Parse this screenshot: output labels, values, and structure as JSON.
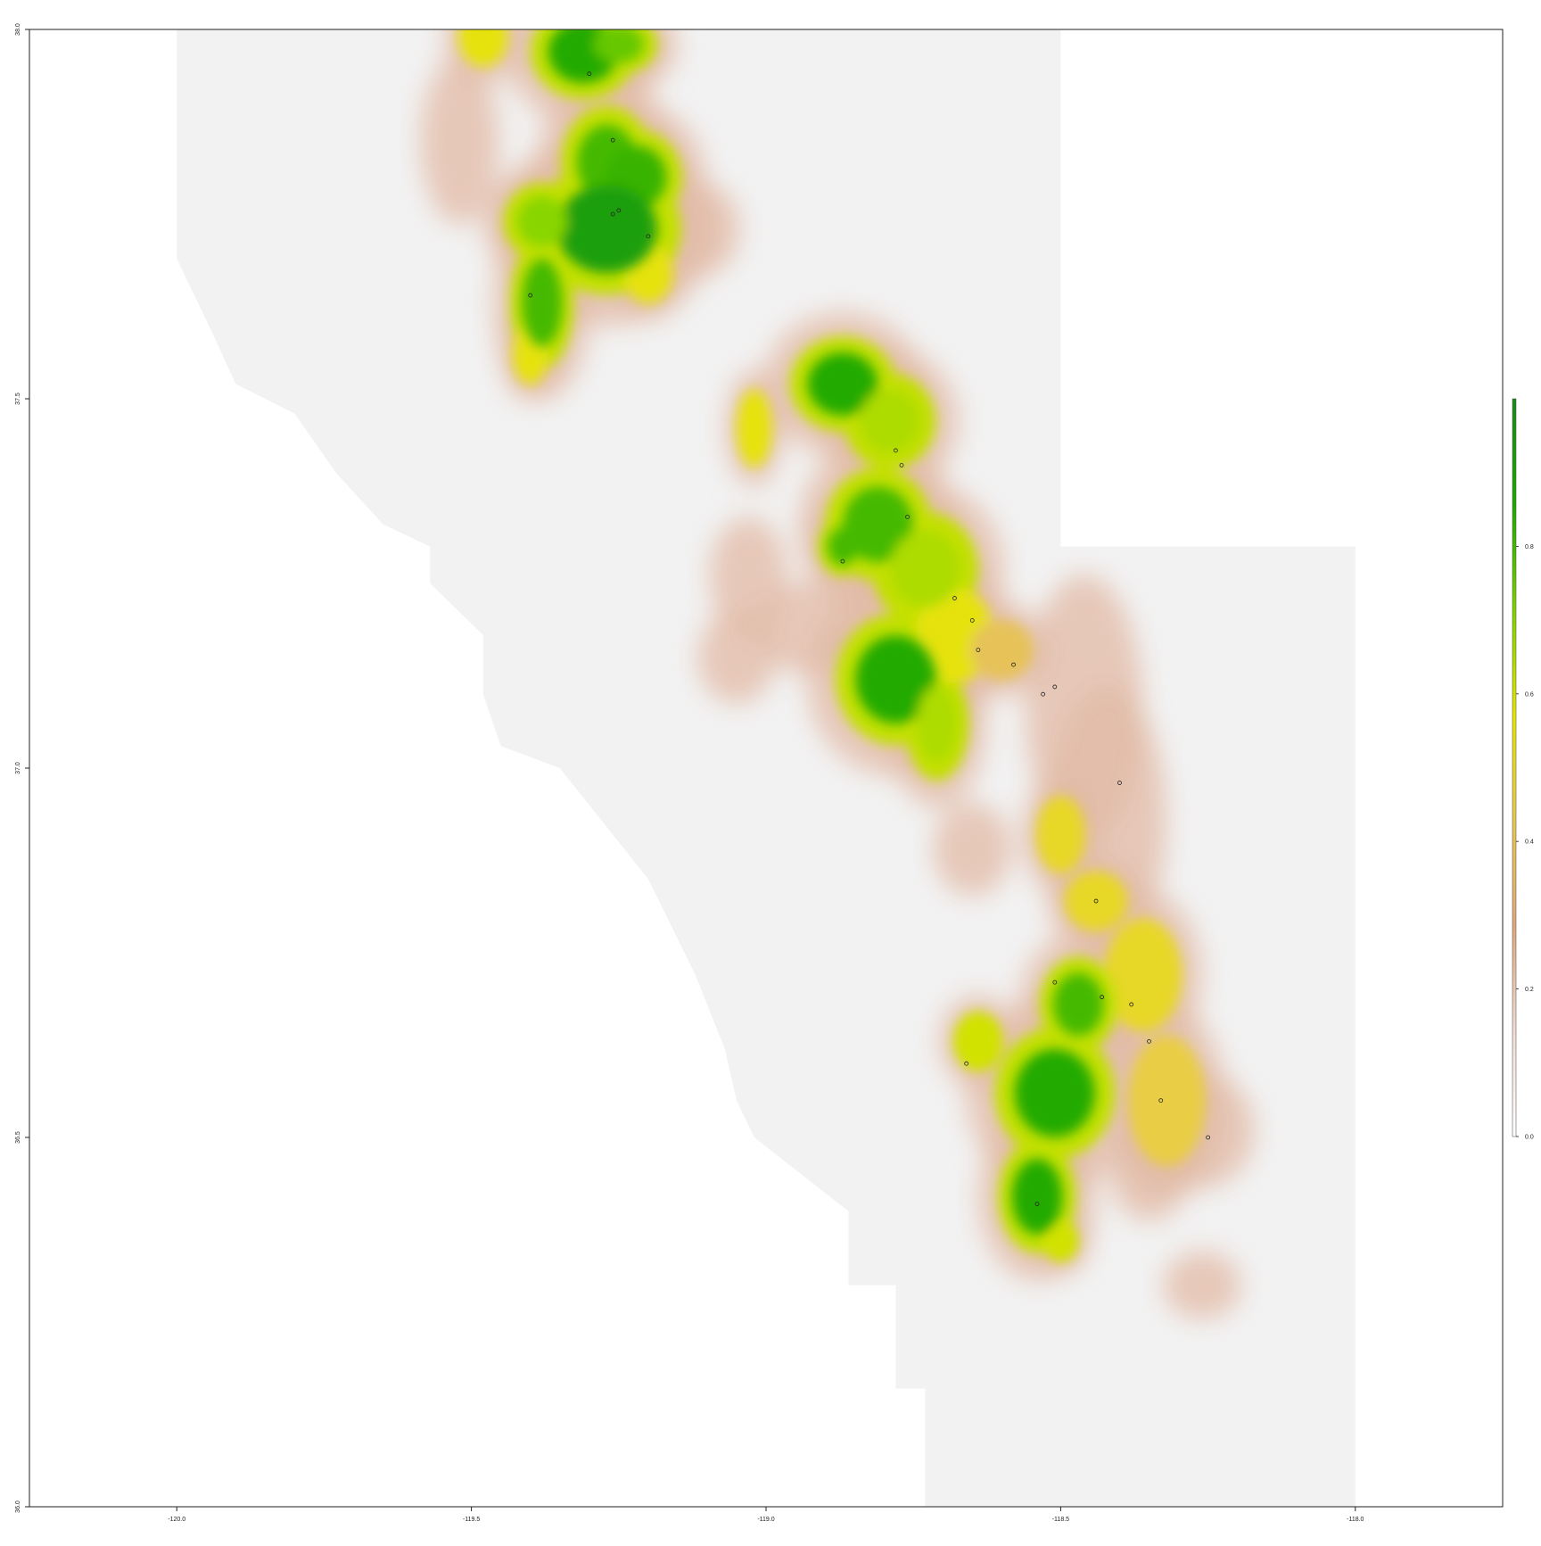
{
  "map": {
    "x_axis": {
      "range": [
        -120.25,
        -117.75
      ],
      "ticks": [
        {
          "value": -120.0,
          "label": "-120.0"
        },
        {
          "value": -119.5,
          "label": "-119.5"
        },
        {
          "value": -119.0,
          "label": "-119.0"
        },
        {
          "value": -118.5,
          "label": "-118.5"
        },
        {
          "value": -118.0,
          "label": "-118.0"
        }
      ]
    },
    "y_axis": {
      "range": [
        36.0,
        38.0
      ],
      "ticks": [
        {
          "value": 36.0,
          "label": "36.0"
        },
        {
          "value": 36.5,
          "label": "36.5"
        },
        {
          "value": 37.0,
          "label": "37.0"
        },
        {
          "value": 37.5,
          "label": "37.5"
        },
        {
          "value": 38.0,
          "label": "38.0"
        }
      ]
    },
    "legend": {
      "placement": "right",
      "range": [
        0.0,
        1.0
      ],
      "ticks": [
        {
          "value": 0.0,
          "label": "0.0"
        },
        {
          "value": 0.2,
          "label": "0.2"
        },
        {
          "value": 0.4,
          "label": "0.4"
        },
        {
          "value": 0.6,
          "label": "0.6"
        },
        {
          "value": 0.8,
          "label": "0.8"
        }
      ],
      "colors": [
        "#ffffff",
        "#f0ddd5",
        "#e0a87a",
        "#e8c850",
        "#e6e600",
        "#7ed300",
        "#1ea800",
        "#1a8a1a"
      ]
    },
    "colors": {
      "no_data": "#ffffff",
      "background_raster": "#f2f2f2",
      "low": "#e2b9a6",
      "mid": "#e6e600",
      "high": "#1ea800"
    }
  },
  "chart_data": {
    "type": "heatmap",
    "xlim": [
      -120.25,
      -117.75
    ],
    "ylim": [
      36.0,
      38.0
    ],
    "value_range": [
      0.0,
      1.0
    ],
    "grid": false,
    "legend_placement": "right",
    "occurrence_points": [
      {
        "x": -119.3,
        "y": 37.94
      },
      {
        "x": -119.26,
        "y": 37.85
      },
      {
        "x": -119.26,
        "y": 37.75
      },
      {
        "x": -119.25,
        "y": 37.755
      },
      {
        "x": -119.2,
        "y": 37.72
      },
      {
        "x": -119.4,
        "y": 37.64
      },
      {
        "x": -118.78,
        "y": 37.43
      },
      {
        "x": -118.77,
        "y": 37.41
      },
      {
        "x": -118.76,
        "y": 37.34
      },
      {
        "x": -118.87,
        "y": 37.28
      },
      {
        "x": -118.68,
        "y": 37.23
      },
      {
        "x": -118.65,
        "y": 37.2
      },
      {
        "x": -118.64,
        "y": 37.16
      },
      {
        "x": -118.58,
        "y": 37.14
      },
      {
        "x": -118.51,
        "y": 37.11
      },
      {
        "x": -118.53,
        "y": 37.1
      },
      {
        "x": -118.4,
        "y": 36.98
      },
      {
        "x": -118.44,
        "y": 36.82
      },
      {
        "x": -118.51,
        "y": 36.71
      },
      {
        "x": -118.43,
        "y": 36.69
      },
      {
        "x": -118.38,
        "y": 36.68
      },
      {
        "x": -118.35,
        "y": 36.63
      },
      {
        "x": -118.66,
        "y": 36.6
      },
      {
        "x": -118.33,
        "y": 36.55
      },
      {
        "x": -118.25,
        "y": 36.5
      },
      {
        "x": -118.54,
        "y": 36.41
      }
    ],
    "suitability_blobs": [
      {
        "x": -119.48,
        "y": 37.99,
        "rx": 0.03,
        "ry": 0.03,
        "v": 0.55
      },
      {
        "x": -119.31,
        "y": 37.97,
        "rx": 0.07,
        "ry": 0.05,
        "v": 0.85
      },
      {
        "x": -119.25,
        "y": 37.98,
        "rx": 0.05,
        "ry": 0.03,
        "v": 0.75
      },
      {
        "x": -119.52,
        "y": 37.85,
        "rx": 0.03,
        "ry": 0.06,
        "v": 0.35
      },
      {
        "x": -119.27,
        "y": 37.82,
        "rx": 0.06,
        "ry": 0.06,
        "v": 0.8
      },
      {
        "x": -119.22,
        "y": 37.8,
        "rx": 0.06,
        "ry": 0.05,
        "v": 0.82
      },
      {
        "x": -119.27,
        "y": 37.73,
        "rx": 0.1,
        "ry": 0.07,
        "v": 0.9
      },
      {
        "x": -119.38,
        "y": 37.74,
        "rx": 0.05,
        "ry": 0.04,
        "v": 0.7
      },
      {
        "x": -119.38,
        "y": 37.63,
        "rx": 0.04,
        "ry": 0.07,
        "v": 0.8
      },
      {
        "x": -119.2,
        "y": 37.67,
        "rx": 0.03,
        "ry": 0.03,
        "v": 0.55
      },
      {
        "x": -119.11,
        "y": 37.73,
        "rx": 0.03,
        "ry": 0.03,
        "v": 0.35
      },
      {
        "x": -119.4,
        "y": 37.56,
        "rx": 0.02,
        "ry": 0.03,
        "v": 0.55
      },
      {
        "x": -118.87,
        "y": 37.52,
        "rx": 0.07,
        "ry": 0.05,
        "v": 0.85
      },
      {
        "x": -118.79,
        "y": 37.47,
        "rx": 0.06,
        "ry": 0.05,
        "v": 0.65
      },
      {
        "x": -119.02,
        "y": 37.46,
        "rx": 0.02,
        "ry": 0.04,
        "v": 0.55
      },
      {
        "x": -118.81,
        "y": 37.33,
        "rx": 0.07,
        "ry": 0.06,
        "v": 0.8
      },
      {
        "x": -118.73,
        "y": 37.27,
        "rx": 0.07,
        "ry": 0.06,
        "v": 0.65
      },
      {
        "x": -118.87,
        "y": 37.3,
        "rx": 0.03,
        "ry": 0.03,
        "v": 0.8
      },
      {
        "x": -118.78,
        "y": 37.12,
        "rx": 0.08,
        "ry": 0.07,
        "v": 0.85
      },
      {
        "x": -118.71,
        "y": 37.06,
        "rx": 0.04,
        "ry": 0.06,
        "v": 0.65
      },
      {
        "x": -118.68,
        "y": 37.18,
        "rx": 0.05,
        "ry": 0.05,
        "v": 0.55
      },
      {
        "x": -118.6,
        "y": 37.16,
        "rx": 0.04,
        "ry": 0.03,
        "v": 0.4
      },
      {
        "x": -119.03,
        "y": 37.26,
        "rx": 0.03,
        "ry": 0.04,
        "v": 0.3
      },
      {
        "x": -119.05,
        "y": 37.15,
        "rx": 0.03,
        "ry": 0.03,
        "v": 0.3
      },
      {
        "x": -118.92,
        "y": 37.19,
        "rx": 0.05,
        "ry": 0.03,
        "v": 0.3
      },
      {
        "x": -118.46,
        "y": 37.08,
        "rx": 0.05,
        "ry": 0.1,
        "v": 0.35
      },
      {
        "x": -118.42,
        "y": 36.93,
        "rx": 0.05,
        "ry": 0.1,
        "v": 0.35
      },
      {
        "x": -118.5,
        "y": 36.91,
        "rx": 0.03,
        "ry": 0.04,
        "v": 0.5
      },
      {
        "x": -118.65,
        "y": 36.89,
        "rx": 0.03,
        "ry": 0.03,
        "v": 0.3
      },
      {
        "x": -118.44,
        "y": 36.82,
        "rx": 0.04,
        "ry": 0.03,
        "v": 0.5
      },
      {
        "x": -118.36,
        "y": 36.72,
        "rx": 0.05,
        "ry": 0.06,
        "v": 0.5
      },
      {
        "x": -118.47,
        "y": 36.68,
        "rx": 0.05,
        "ry": 0.05,
        "v": 0.8
      },
      {
        "x": -118.51,
        "y": 36.56,
        "rx": 0.08,
        "ry": 0.07,
        "v": 0.85
      },
      {
        "x": -118.64,
        "y": 36.63,
        "rx": 0.03,
        "ry": 0.03,
        "v": 0.6
      },
      {
        "x": -118.54,
        "y": 36.42,
        "rx": 0.05,
        "ry": 0.06,
        "v": 0.85
      },
      {
        "x": -118.32,
        "y": 36.55,
        "rx": 0.05,
        "ry": 0.07,
        "v": 0.45
      },
      {
        "x": -118.27,
        "y": 36.51,
        "rx": 0.05,
        "ry": 0.04,
        "v": 0.3
      },
      {
        "x": -118.35,
        "y": 36.45,
        "rx": 0.03,
        "ry": 0.03,
        "v": 0.3
      },
      {
        "x": -118.5,
        "y": 36.36,
        "rx": 0.02,
        "ry": 0.02,
        "v": 0.6
      },
      {
        "x": -118.26,
        "y": 36.3,
        "rx": 0.03,
        "ry": 0.02,
        "v": 0.2
      }
    ],
    "raster_extent": [
      [
        -120.0,
        38.0
      ],
      [
        -118.5,
        38.0
      ],
      [
        -118.5,
        37.3
      ],
      [
        -118.0,
        37.3
      ],
      [
        -118.0,
        36.0
      ],
      [
        -118.73,
        36.0
      ],
      [
        -118.73,
        36.16
      ],
      [
        -118.78,
        36.16
      ],
      [
        -118.78,
        36.3
      ],
      [
        -118.86,
        36.3
      ],
      [
        -118.86,
        36.4
      ],
      [
        -119.02,
        36.5
      ],
      [
        -119.05,
        36.55
      ],
      [
        -119.07,
        36.62
      ],
      [
        -119.12,
        36.72
      ],
      [
        -119.2,
        36.85
      ],
      [
        -119.28,
        36.93
      ],
      [
        -119.35,
        37.0
      ],
      [
        -119.45,
        37.03
      ],
      [
        -119.48,
        37.1
      ],
      [
        -119.48,
        37.18
      ],
      [
        -119.57,
        37.25
      ],
      [
        -119.57,
        37.3
      ],
      [
        -119.65,
        37.33
      ],
      [
        -119.73,
        37.4
      ],
      [
        -119.8,
        37.48
      ],
      [
        -119.9,
        37.52
      ],
      [
        -119.94,
        37.59
      ],
      [
        -119.97,
        37.64
      ],
      [
        -120.0,
        37.69
      ]
    ]
  }
}
